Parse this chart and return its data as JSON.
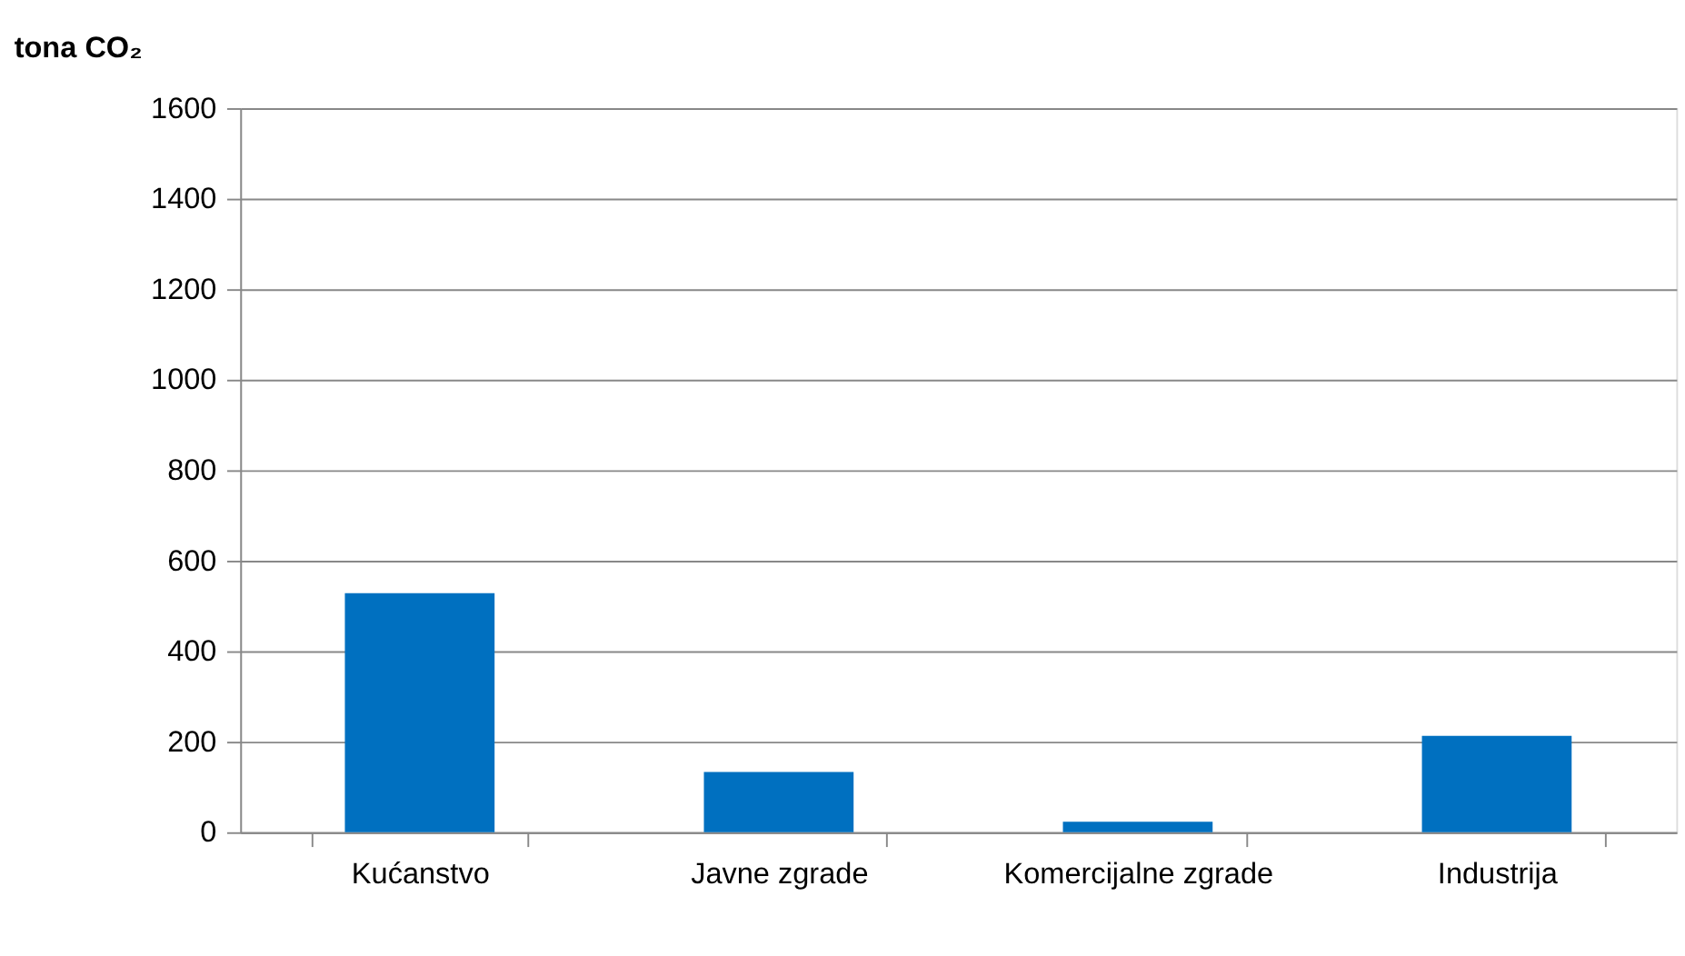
{
  "chart_data": {
    "type": "bar",
    "ylabel": "tona CO₂",
    "categories": [
      "Kućanstvo",
      "Javne zgrade",
      "Komercijalne zgrade",
      "Industrija"
    ],
    "values": [
      528,
      133,
      23,
      213
    ],
    "color": "#0070c0",
    "ylim": [
      0,
      1600
    ],
    "yticks": [
      0,
      200,
      400,
      600,
      800,
      1000,
      1200,
      1400,
      1600
    ],
    "grid": "y"
  }
}
